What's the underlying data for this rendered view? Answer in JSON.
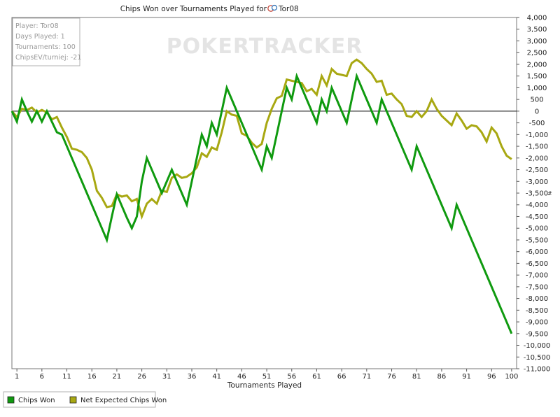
{
  "chart_data": {
    "type": "line",
    "title": "Chips Won over Tournaments Played for",
    "player_name": "Tor08",
    "xlabel": "Tournaments Played",
    "ylabel": "",
    "xlim": [
      0,
      101
    ],
    "ylim": [
      -11000,
      4000
    ],
    "x_ticks": [
      1,
      6,
      11,
      16,
      21,
      26,
      31,
      36,
      41,
      46,
      51,
      56,
      61,
      66,
      71,
      76,
      81,
      86,
      91,
      96,
      100
    ],
    "y_ticks": [
      4000,
      3500,
      3000,
      2500,
      2000,
      1500,
      1000,
      500,
      0,
      -500,
      -1000,
      -1500,
      -2000,
      -2500,
      -3000,
      -3500,
      -4000,
      -4500,
      -5000,
      -5500,
      -6000,
      -6500,
      -7000,
      -7500,
      -8000,
      -8500,
      -9000,
      -9500,
      -10000,
      -10500,
      -11000
    ],
    "y_tick_labels": [
      "4,000",
      "3,500",
      "3,000",
      "2,500",
      "2,000",
      "1,500",
      "1,000",
      "500",
      "0",
      "-500",
      "-1,000",
      "-1,500",
      "-2,000",
      "-2,500",
      "-3,000",
      "-3,500",
      "-4,000",
      "-4,500",
      "-5,000",
      "-5,500",
      "-6,000",
      "-6,500",
      "-7,000",
      "-7,500",
      "-8,000",
      "-8,500",
      "-9,000",
      "-9,500",
      "-10,000",
      "-10,500",
      "-11,000"
    ],
    "grid": false,
    "legend_position": "bottom-left",
    "series": [
      {
        "name": "Chips Won",
        "color": "#0f9a0f",
        "points": [
          [
            0,
            0
          ],
          [
            1,
            -450
          ],
          [
            2,
            500
          ],
          [
            3,
            0
          ],
          [
            4,
            -450
          ],
          [
            5,
            0
          ],
          [
            6,
            -450
          ],
          [
            7,
            0
          ],
          [
            8,
            -450
          ],
          [
            9,
            -900
          ],
          [
            10,
            -1000
          ],
          [
            11,
            -1500
          ],
          [
            12,
            -2000
          ],
          [
            13,
            -2500
          ],
          [
            14,
            -3000
          ],
          [
            15,
            -3500
          ],
          [
            16,
            -4000
          ],
          [
            17,
            -4500
          ],
          [
            18,
            -5000
          ],
          [
            19,
            -5500
          ],
          [
            20,
            -4500
          ],
          [
            21,
            -3550
          ],
          [
            22,
            -4050
          ],
          [
            23,
            -4550
          ],
          [
            24,
            -5000
          ],
          [
            25,
            -4500
          ],
          [
            26,
            -3000
          ],
          [
            27,
            -2000
          ],
          [
            28,
            -2500
          ],
          [
            29,
            -3000
          ],
          [
            30,
            -3500
          ],
          [
            31,
            -3000
          ],
          [
            32,
            -2500
          ],
          [
            33,
            -3000
          ],
          [
            34,
            -3500
          ],
          [
            35,
            -4000
          ],
          [
            36,
            -3000
          ],
          [
            37,
            -2000
          ],
          [
            38,
            -1000
          ],
          [
            39,
            -1500
          ],
          [
            40,
            -500
          ],
          [
            41,
            -1000
          ],
          [
            42,
            0
          ],
          [
            43,
            1000
          ],
          [
            44,
            500
          ],
          [
            45,
            0
          ],
          [
            46,
            -500
          ],
          [
            47,
            -1000
          ],
          [
            48,
            -1500
          ],
          [
            49,
            -2000
          ],
          [
            50,
            -2500
          ],
          [
            51,
            -1500
          ],
          [
            52,
            -2000
          ],
          [
            53,
            -1000
          ],
          [
            54,
            0
          ],
          [
            55,
            1000
          ],
          [
            56,
            500
          ],
          [
            57,
            1500
          ],
          [
            58,
            1000
          ],
          [
            59,
            500
          ],
          [
            60,
            0
          ],
          [
            61,
            -500
          ],
          [
            62,
            500
          ],
          [
            63,
            0
          ],
          [
            64,
            1000
          ],
          [
            65,
            500
          ],
          [
            66,
            0
          ],
          [
            67,
            -500
          ],
          [
            68,
            500
          ],
          [
            69,
            1500
          ],
          [
            70,
            1000
          ],
          [
            71,
            500
          ],
          [
            72,
            0
          ],
          [
            73,
            -500
          ],
          [
            74,
            500
          ],
          [
            75,
            0
          ],
          [
            76,
            -500
          ],
          [
            77,
            -1000
          ],
          [
            78,
            -1500
          ],
          [
            79,
            -2000
          ],
          [
            80,
            -2500
          ],
          [
            81,
            -1500
          ],
          [
            82,
            -2000
          ],
          [
            83,
            -2500
          ],
          [
            84,
            -3000
          ],
          [
            85,
            -3500
          ],
          [
            86,
            -4000
          ],
          [
            87,
            -4500
          ],
          [
            88,
            -5000
          ],
          [
            89,
            -4000
          ],
          [
            90,
            -4500
          ],
          [
            91,
            -5000
          ],
          [
            92,
            -5500
          ],
          [
            93,
            -6000
          ],
          [
            94,
            -6500
          ],
          [
            95,
            -7000
          ],
          [
            96,
            -7500
          ],
          [
            97,
            -8000
          ],
          [
            98,
            -8500
          ],
          [
            99,
            -9000
          ],
          [
            100,
            -9500
          ]
        ]
      },
      {
        "name": "Net Expected Chips Won",
        "color": "#a8a812",
        "points": [
          [
            0,
            0
          ],
          [
            1,
            -250
          ],
          [
            2,
            100
          ],
          [
            3,
            50
          ],
          [
            4,
            150
          ],
          [
            5,
            -50
          ],
          [
            6,
            50
          ],
          [
            7,
            -50
          ],
          [
            8,
            -350
          ],
          [
            9,
            -250
          ],
          [
            10,
            -700
          ],
          [
            11,
            -1100
          ],
          [
            12,
            -1600
          ],
          [
            13,
            -1650
          ],
          [
            14,
            -1750
          ],
          [
            15,
            -2000
          ],
          [
            16,
            -2500
          ],
          [
            17,
            -3400
          ],
          [
            18,
            -3700
          ],
          [
            19,
            -4100
          ],
          [
            20,
            -4050
          ],
          [
            21,
            -3550
          ],
          [
            22,
            -3650
          ],
          [
            23,
            -3600
          ],
          [
            24,
            -3850
          ],
          [
            25,
            -3750
          ],
          [
            26,
            -4500
          ],
          [
            27,
            -3950
          ],
          [
            28,
            -3750
          ],
          [
            29,
            -3950
          ],
          [
            30,
            -3400
          ],
          [
            31,
            -3450
          ],
          [
            32,
            -2850
          ],
          [
            33,
            -2700
          ],
          [
            34,
            -2850
          ],
          [
            35,
            -2800
          ],
          [
            36,
            -2650
          ],
          [
            37,
            -2400
          ],
          [
            38,
            -1800
          ],
          [
            39,
            -1950
          ],
          [
            40,
            -1550
          ],
          [
            41,
            -1650
          ],
          [
            42,
            -900
          ],
          [
            43,
            0
          ],
          [
            44,
            -150
          ],
          [
            45,
            -200
          ],
          [
            46,
            -950
          ],
          [
            47,
            -1050
          ],
          [
            48,
            -1350
          ],
          [
            49,
            -1550
          ],
          [
            50,
            -1400
          ],
          [
            51,
            -500
          ],
          [
            52,
            100
          ],
          [
            53,
            550
          ],
          [
            54,
            650
          ],
          [
            55,
            1350
          ],
          [
            56,
            1300
          ],
          [
            57,
            1250
          ],
          [
            58,
            1200
          ],
          [
            59,
            850
          ],
          [
            60,
            950
          ],
          [
            61,
            700
          ],
          [
            62,
            1500
          ],
          [
            63,
            1100
          ],
          [
            64,
            1800
          ],
          [
            65,
            1600
          ],
          [
            66,
            1550
          ],
          [
            67,
            1500
          ],
          [
            68,
            2050
          ],
          [
            69,
            2200
          ],
          [
            70,
            2050
          ],
          [
            71,
            1800
          ],
          [
            72,
            1600
          ],
          [
            73,
            1250
          ],
          [
            74,
            1300
          ],
          [
            75,
            700
          ],
          [
            76,
            750
          ],
          [
            77,
            500
          ],
          [
            78,
            300
          ],
          [
            79,
            -200
          ],
          [
            80,
            -250
          ],
          [
            81,
            0
          ],
          [
            82,
            -250
          ],
          [
            83,
            0
          ],
          [
            84,
            500
          ],
          [
            85,
            100
          ],
          [
            86,
            -200
          ],
          [
            87,
            -400
          ],
          [
            88,
            -600
          ],
          [
            89,
            -100
          ],
          [
            90,
            -400
          ],
          [
            91,
            -750
          ],
          [
            92,
            -600
          ],
          [
            93,
            -650
          ],
          [
            94,
            -900
          ],
          [
            95,
            -1300
          ],
          [
            96,
            -700
          ],
          [
            97,
            -950
          ],
          [
            98,
            -1500
          ],
          [
            99,
            -1900
          ],
          [
            100,
            -2050
          ]
        ]
      }
    ]
  },
  "infobox": {
    "player": "Player: Tor08",
    "days": "Days Played: 1",
    "tournaments": "Tournaments: 100",
    "chipsev": "ChipsEV/turniej: -21"
  },
  "watermark": "POKERTRACKER",
  "y_axis_side_label": "#",
  "colors": {
    "chips_won": "#0f9a0f",
    "net_expected": "#a8a812",
    "zero_line": "#000000"
  }
}
